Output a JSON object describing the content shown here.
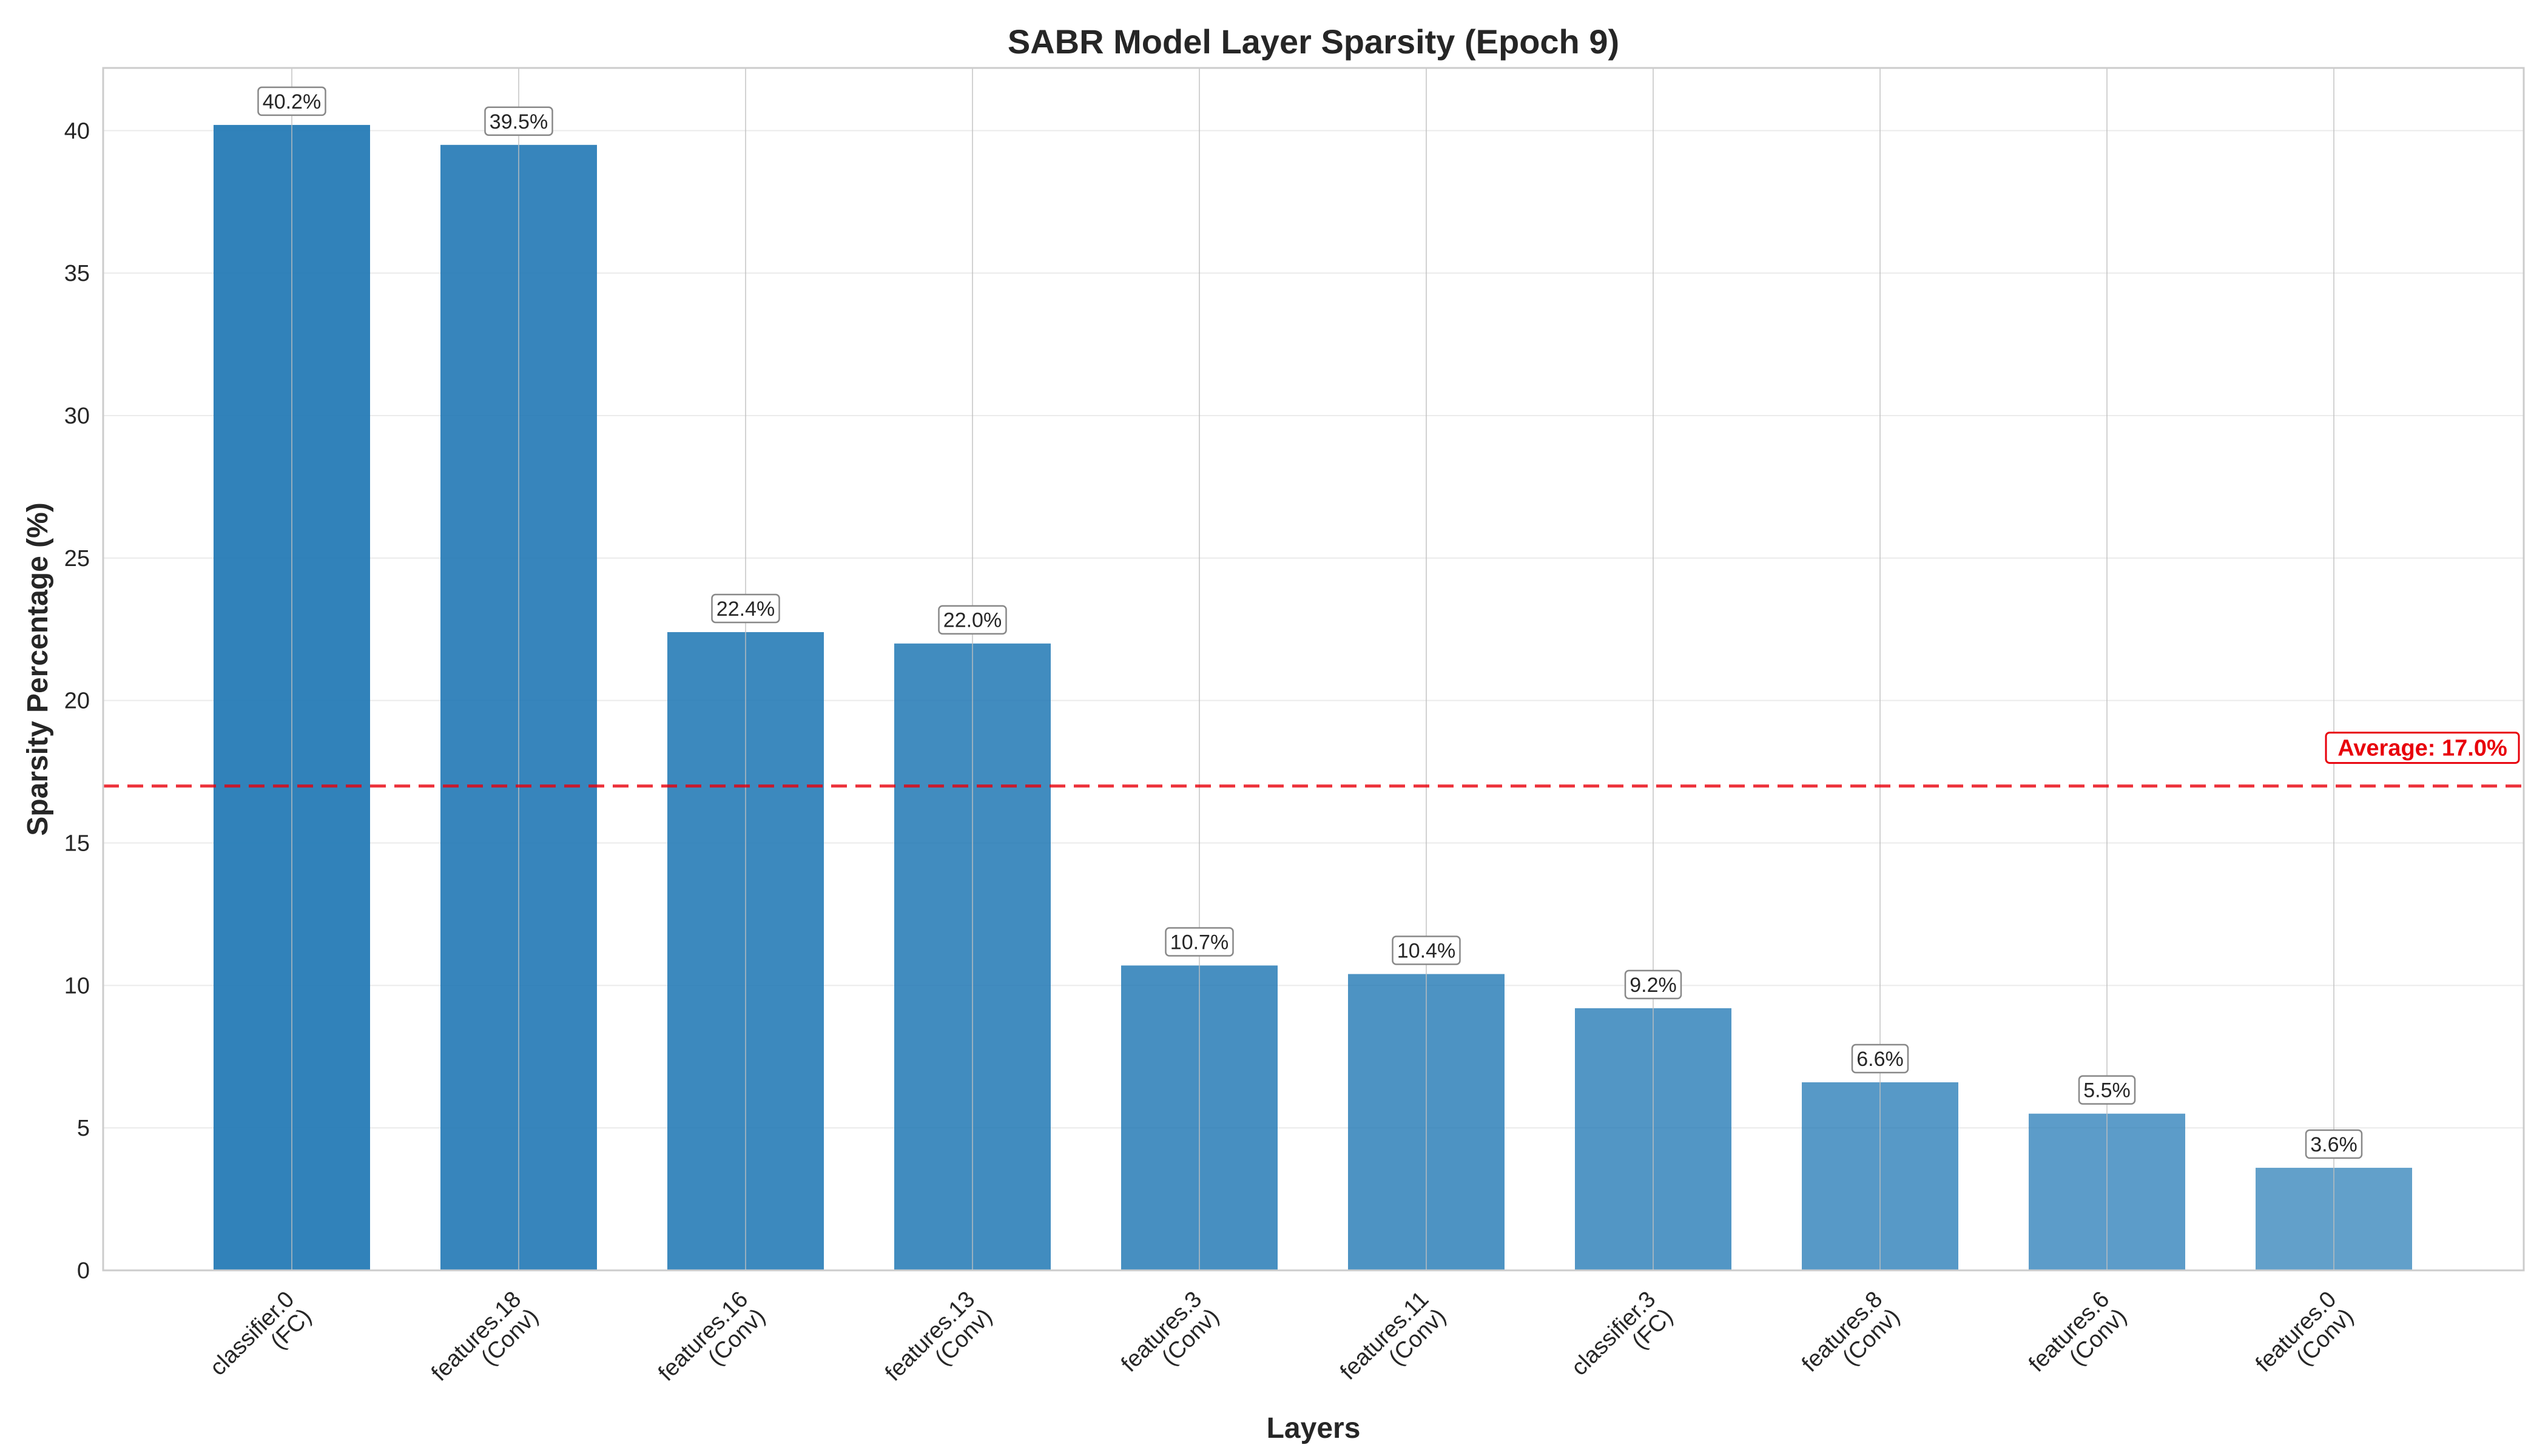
{
  "chart_data": {
    "type": "bar",
    "title": "SABR Model Layer Sparsity (Epoch 9)",
    "xlabel": "Layers",
    "ylabel": "Sparsity Percentage (%)",
    "categories": [
      "classifier.0\n(FC)",
      "features.18\n(Conv)",
      "features.16\n(Conv)",
      "features.13\n(Conv)",
      "features.3\n(Conv)",
      "features.11\n(Conv)",
      "classifier.3\n(FC)",
      "features.8\n(Conv)",
      "features.6\n(Conv)",
      "features.0\n(Conv)"
    ],
    "values": [
      40.2,
      39.5,
      22.4,
      22.0,
      10.7,
      10.4,
      9.2,
      6.6,
      5.5,
      3.6
    ],
    "value_labels": [
      "40.2%",
      "39.5%",
      "22.4%",
      "22.0%",
      "10.7%",
      "10.4%",
      "9.2%",
      "6.6%",
      "5.5%",
      "3.6%"
    ],
    "ylim": [
      0,
      42.2
    ],
    "yticks": [
      0,
      5,
      10,
      15,
      20,
      25,
      30,
      35,
      40
    ],
    "grid": true,
    "average": {
      "value": 17.0,
      "label": "Average: 17.0%",
      "color": "#e8000b"
    },
    "bar_color": "#1f77b4"
  }
}
